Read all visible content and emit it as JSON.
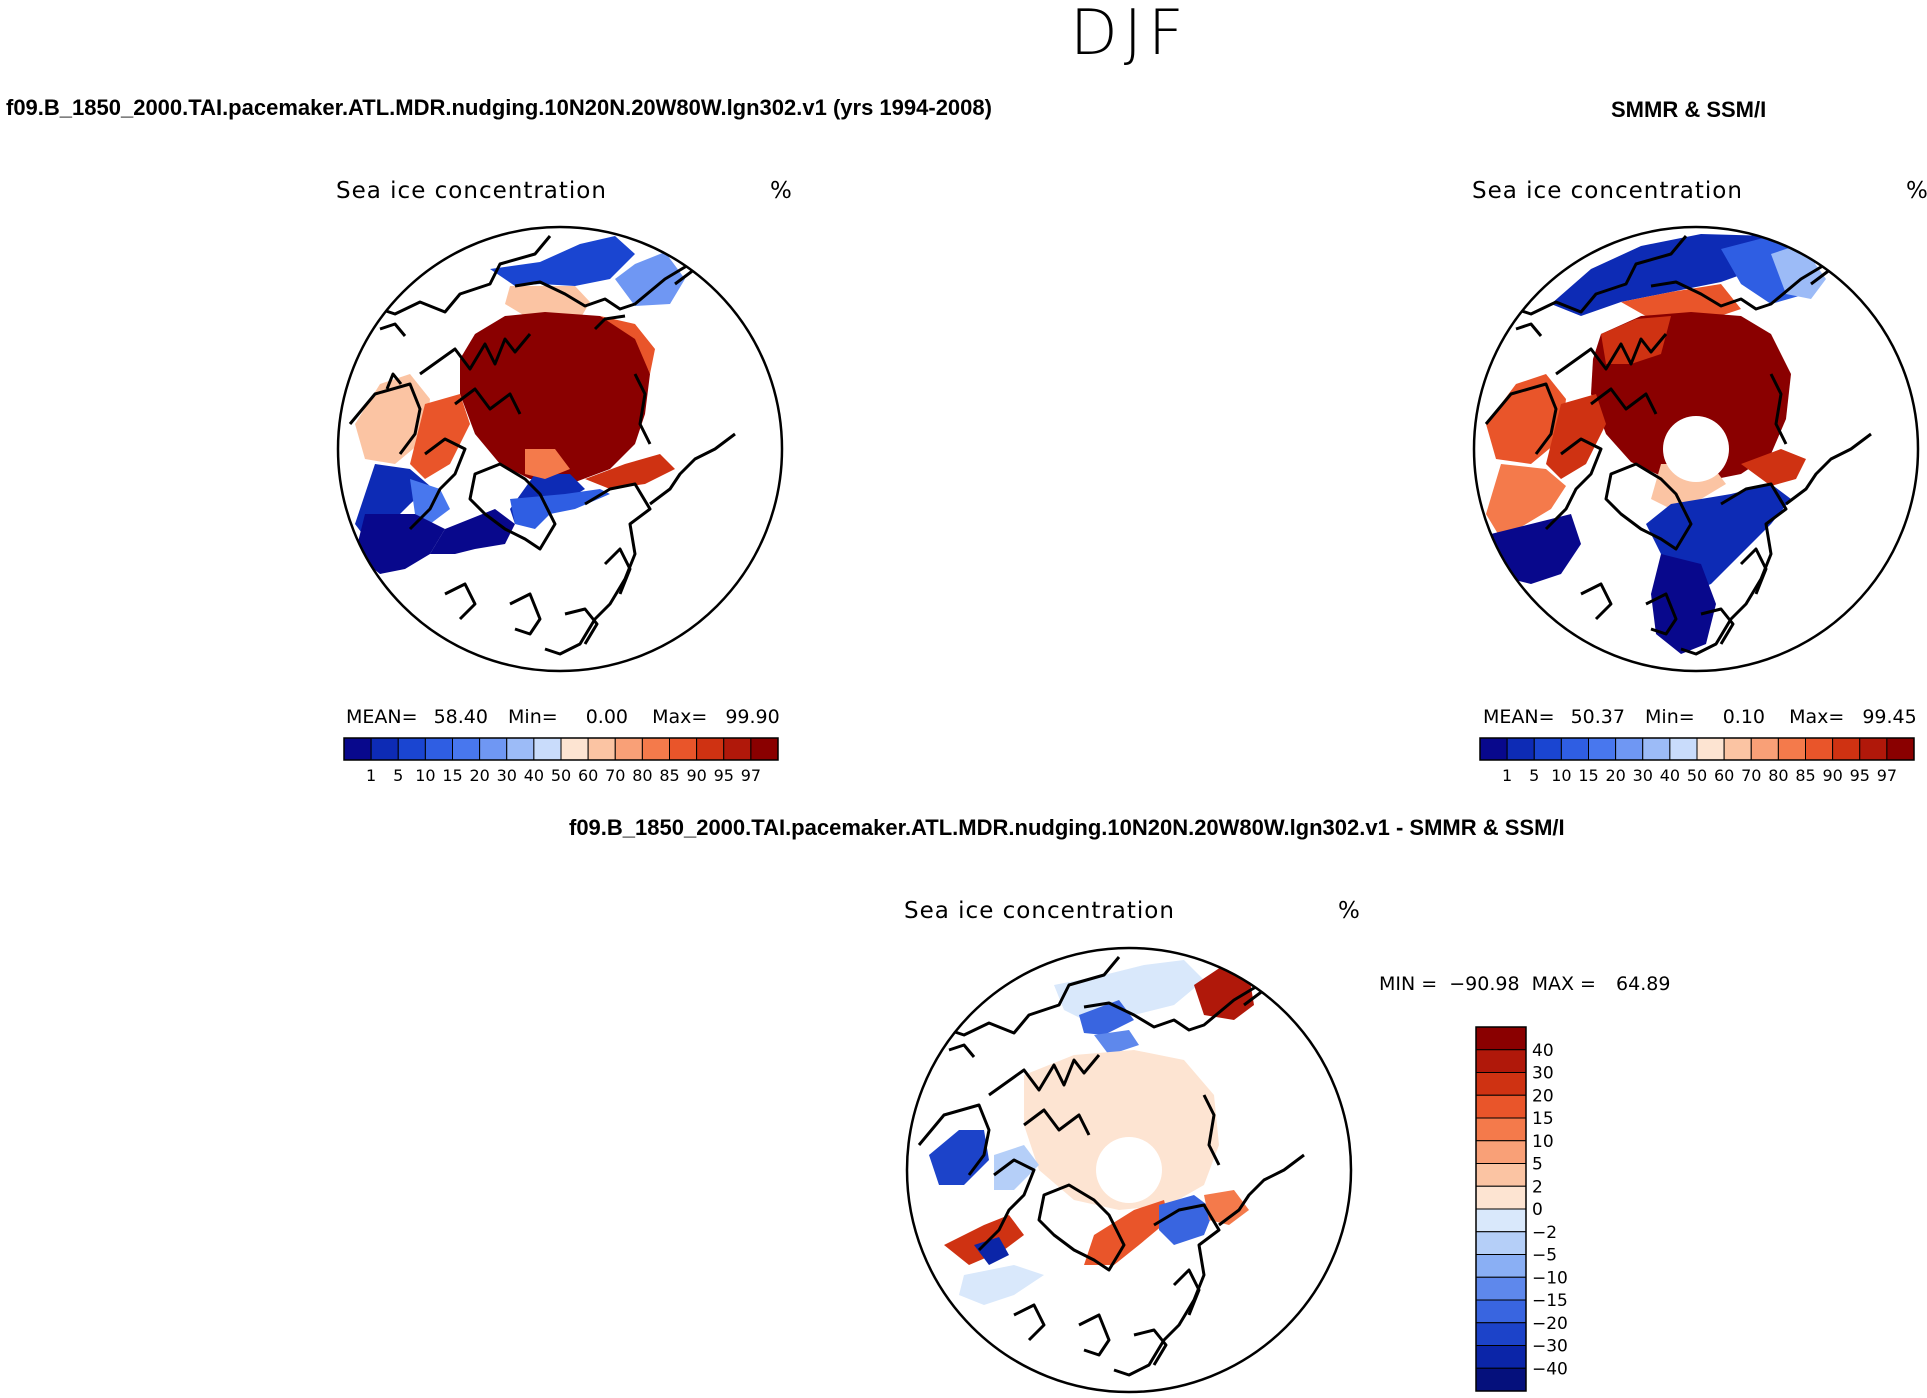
{
  "season": "DJF",
  "panels": [
    {
      "title": "f09.B_1850_2000.TAI.pacemaker.ATL.MDR.nudging.10N20N.20W80W.lgn302.v1 (yrs 1994-2008)",
      "variable": "Sea ice concentration",
      "units": "%",
      "stats": {
        "mean_label": "MEAN=",
        "mean": "58.40",
        "min_label": "Min=",
        "min": "0.00",
        "max_label": "Max=",
        "max": "99.90"
      }
    },
    {
      "title": "SMMR & SSM/I",
      "variable": "Sea ice concentration",
      "units": "%",
      "stats": {
        "mean_label": "MEAN=",
        "mean": "50.37",
        "min_label": "Min=",
        "min": "0.10",
        "max_label": "Max=",
        "max": "99.45"
      }
    },
    {
      "title": "f09.B_1850_2000.TAI.pacemaker.ATL.MDR.nudging.10N20N.20W80W.lgn302.v1 - SMMR & SSM/I",
      "variable": "Sea ice concentration",
      "units": "%",
      "stats": {
        "min_label": "MIN =",
        "min": "−90.98",
        "max_label": "MAX =",
        "max": "64.89"
      }
    }
  ],
  "chart_data": [
    {
      "type": "heatmap",
      "projection": "north polar stereographic",
      "title": "Sea ice concentration",
      "units": "%",
      "colorbar": {
        "orientation": "horizontal",
        "levels": [
          "1",
          "5",
          "10",
          "15",
          "20",
          "30",
          "40",
          "50",
          "60",
          "70",
          "80",
          "85",
          "90",
          "95",
          "97"
        ],
        "colors": [
          "#08088c",
          "#0d2bb5",
          "#1a45d1",
          "#2f5ee3",
          "#4877ee",
          "#6f97f3",
          "#9cbbf7",
          "#c9dcfb",
          "#fde4d2",
          "#fbc4a3",
          "#f9a077",
          "#f47a4b",
          "#e9552a",
          "#cf3212",
          "#b0180a",
          "#8a0000"
        ]
      },
      "stats": {
        "mean": 58.4,
        "min": 0.0,
        "max": 99.9
      }
    },
    {
      "type": "heatmap",
      "projection": "north polar stereographic",
      "title": "Sea ice concentration",
      "units": "%",
      "pole_hole": true,
      "colorbar": {
        "orientation": "horizontal",
        "levels": [
          "1",
          "5",
          "10",
          "15",
          "20",
          "30",
          "40",
          "50",
          "60",
          "70",
          "80",
          "85",
          "90",
          "95",
          "97"
        ],
        "colors": [
          "#08088c",
          "#0d2bb5",
          "#1a45d1",
          "#2f5ee3",
          "#4877ee",
          "#6f97f3",
          "#9cbbf7",
          "#c9dcfb",
          "#fde4d2",
          "#fbc4a3",
          "#f9a077",
          "#f47a4b",
          "#e9552a",
          "#cf3212",
          "#b0180a",
          "#8a0000"
        ]
      },
      "stats": {
        "mean": 50.37,
        "min": 0.1,
        "max": 99.45
      }
    },
    {
      "type": "heatmap",
      "projection": "north polar stereographic",
      "title": "Sea ice concentration",
      "units": "%",
      "pole_hole": true,
      "colorbar": {
        "orientation": "vertical",
        "levels": [
          "40",
          "30",
          "20",
          "15",
          "10",
          "5",
          "2",
          "0",
          "−2",
          "−5",
          "−10",
          "−15",
          "−20",
          "−30",
          "−40"
        ],
        "colors": [
          "#8a0000",
          "#b0180a",
          "#cf3212",
          "#e9552a",
          "#f47a4b",
          "#f9a077",
          "#fbc4a3",
          "#fde4d2",
          "#d9e8fb",
          "#b5cff8",
          "#8aaff4",
          "#5e88ec",
          "#3965e0",
          "#1c43c9",
          "#0b25a8",
          "#05107c"
        ]
      },
      "stats": {
        "min": -90.98,
        "max": 64.89
      }
    }
  ]
}
